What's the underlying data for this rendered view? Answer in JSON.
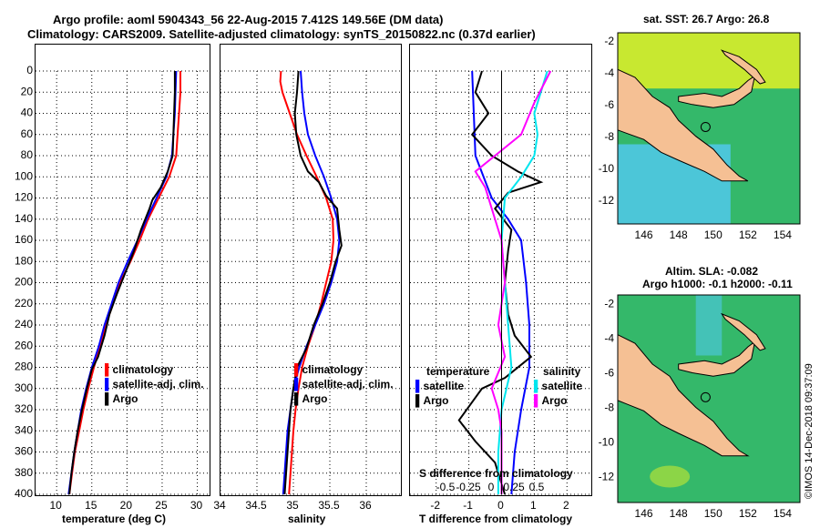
{
  "header": {
    "line1": "Argo profile: aoml 5904343_56 22-Aug-2015 7.412S 149.56E (DM data)",
    "line2": "Climatology: CARS2009. Satellite-adjusted climatology: synTS_20150822.nc (0.37d earlier)"
  },
  "maps": {
    "top_title": "sat. SST: 26.7 Argo: 26.8",
    "bottom_title_1": "Altim. SLA: -0.082",
    "bottom_title_2": "Argo h1000: -0.1 h2000: -0.11",
    "xticks": [
      "146",
      "148",
      "150",
      "152",
      "154"
    ],
    "yticks": [
      "-2",
      "-4",
      "-6",
      "-8",
      "-10",
      "-12"
    ],
    "argo_lon": 149.56,
    "argo_lat": -7.412,
    "colors": {
      "land": "#f5c094",
      "ocean_green": "#34b86a",
      "ocean_cyan": "#4cc6d8",
      "ocean_yellow": "#c8e830"
    }
  },
  "credit": "©IMOS 14-Dec-2018 09:37:09",
  "chart_data": [
    {
      "type": "line",
      "name": "temperature",
      "xlabel": "temperature (deg C)",
      "ylabel": "",
      "xlim": [
        7,
        32
      ],
      "ylim": [
        400,
        0
      ],
      "xticks": [
        10,
        15,
        20,
        25,
        30
      ],
      "yticks": [
        0,
        20,
        40,
        60,
        80,
        100,
        120,
        140,
        160,
        180,
        200,
        220,
        240,
        260,
        280,
        300,
        320,
        340,
        360,
        380,
        400
      ],
      "legend": {
        "position": "lower-right",
        "entries": [
          "climatology",
          "satellite-adj. clim.",
          "Argo"
        ]
      },
      "series": [
        {
          "name": "climatology",
          "color": "#ff0000",
          "points": [
            [
              27.6,
              0
            ],
            [
              27.6,
              20
            ],
            [
              27.4,
              40
            ],
            [
              27.2,
              60
            ],
            [
              27.0,
              80
            ],
            [
              26.0,
              100
            ],
            [
              24.5,
              120
            ],
            [
              23.0,
              140
            ],
            [
              21.8,
              160
            ],
            [
              20.5,
              180
            ],
            [
              19.0,
              200
            ],
            [
              18.0,
              220
            ],
            [
              17.0,
              240
            ],
            [
              16.2,
              260
            ],
            [
              15.3,
              280
            ],
            [
              14.5,
              300
            ],
            [
              13.8,
              320
            ],
            [
              13.2,
              340
            ],
            [
              12.6,
              360
            ],
            [
              12.2,
              380
            ],
            [
              11.8,
              400
            ]
          ]
        },
        {
          "name": "satellite-adj. clim.",
          "color": "#0000ff",
          "points": [
            [
              27.0,
              0
            ],
            [
              26.9,
              20
            ],
            [
              26.8,
              40
            ],
            [
              26.6,
              60
            ],
            [
              26.4,
              80
            ],
            [
              25.6,
              100
            ],
            [
              24.2,
              120
            ],
            [
              22.8,
              140
            ],
            [
              21.5,
              160
            ],
            [
              20.1,
              180
            ],
            [
              18.8,
              200
            ],
            [
              17.8,
              220
            ],
            [
              16.8,
              240
            ],
            [
              16.0,
              260
            ],
            [
              15.0,
              280
            ],
            [
              14.2,
              300
            ],
            [
              13.5,
              320
            ],
            [
              13.0,
              340
            ],
            [
              12.5,
              360
            ],
            [
              12.1,
              380
            ],
            [
              11.7,
              400
            ]
          ]
        },
        {
          "name": "Argo",
          "color": "#000000",
          "points": [
            [
              26.8,
              0
            ],
            [
              26.8,
              20
            ],
            [
              26.7,
              40
            ],
            [
              26.6,
              60
            ],
            [
              26.5,
              80
            ],
            [
              25.8,
              95
            ],
            [
              24.8,
              110
            ],
            [
              23.6,
              122
            ],
            [
              23.2,
              130
            ],
            [
              22.0,
              150
            ],
            [
              21.0,
              170
            ],
            [
              19.8,
              190
            ],
            [
              18.6,
              210
            ],
            [
              17.5,
              230
            ],
            [
              16.8,
              250
            ],
            [
              15.9,
              270
            ],
            [
              15.0,
              282
            ],
            [
              14.3,
              300
            ],
            [
              13.6,
              320
            ],
            [
              13.0,
              340
            ],
            [
              12.5,
              360
            ],
            [
              12.1,
              380
            ],
            [
              11.8,
              400
            ]
          ]
        }
      ]
    },
    {
      "type": "line",
      "name": "salinity",
      "xlabel": "salinity",
      "ylabel": "",
      "xlim": [
        34,
        36.5
      ],
      "ylim": [
        400,
        0
      ],
      "xticks": [
        34,
        34.5,
        35,
        35.5,
        36
      ],
      "xtick_labels": [
        "34",
        "34.5",
        "35",
        "35.5",
        "36"
      ],
      "legend": {
        "position": "lower-right",
        "entries": [
          "climatology",
          "satellite-adj. clim.",
          "Argo"
        ]
      },
      "series": [
        {
          "name": "climatology",
          "color": "#ff0000",
          "points": [
            [
              34.83,
              0
            ],
            [
              34.82,
              10
            ],
            [
              34.85,
              20
            ],
            [
              34.95,
              40
            ],
            [
              35.05,
              60
            ],
            [
              35.18,
              80
            ],
            [
              35.32,
              100
            ],
            [
              35.45,
              120
            ],
            [
              35.54,
              140
            ],
            [
              35.55,
              160
            ],
            [
              35.52,
              180
            ],
            [
              35.45,
              200
            ],
            [
              35.38,
              220
            ],
            [
              35.3,
              240
            ],
            [
              35.2,
              260
            ],
            [
              35.12,
              280
            ],
            [
              35.07,
              300
            ],
            [
              35.03,
              320
            ],
            [
              35.0,
              340
            ],
            [
              34.98,
              360
            ],
            [
              34.96,
              380
            ],
            [
              34.94,
              400
            ]
          ]
        },
        {
          "name": "satellite-adj. clim.",
          "color": "#0000ff",
          "points": [
            [
              35.1,
              0
            ],
            [
              35.12,
              20
            ],
            [
              35.15,
              40
            ],
            [
              35.2,
              60
            ],
            [
              35.3,
              80
            ],
            [
              35.42,
              100
            ],
            [
              35.52,
              120
            ],
            [
              35.6,
              140
            ],
            [
              35.63,
              160
            ],
            [
              35.6,
              180
            ],
            [
              35.52,
              200
            ],
            [
              35.42,
              220
            ],
            [
              35.3,
              240
            ],
            [
              35.18,
              260
            ],
            [
              35.08,
              280
            ],
            [
              35.0,
              300
            ],
            [
              34.96,
              320
            ],
            [
              34.92,
              340
            ],
            [
              34.9,
              360
            ],
            [
              34.88,
              380
            ],
            [
              34.86,
              400
            ]
          ]
        },
        {
          "name": "Argo",
          "color": "#000000",
          "points": [
            [
              35.07,
              0
            ],
            [
              35.05,
              20
            ],
            [
              35.02,
              40
            ],
            [
              35.04,
              60
            ],
            [
              35.1,
              80
            ],
            [
              35.2,
              95
            ],
            [
              35.35,
              105
            ],
            [
              35.45,
              118
            ],
            [
              35.6,
              130
            ],
            [
              35.63,
              150
            ],
            [
              35.66,
              165
            ],
            [
              35.58,
              180
            ],
            [
              35.5,
              200
            ],
            [
              35.4,
              220
            ],
            [
              35.28,
              240
            ],
            [
              35.18,
              262
            ],
            [
              35.05,
              280
            ],
            [
              35.0,
              300
            ],
            [
              34.96,
              320
            ],
            [
              34.94,
              340
            ],
            [
              34.92,
              360
            ],
            [
              34.9,
              380
            ],
            [
              34.88,
              400
            ]
          ]
        }
      ]
    },
    {
      "type": "line",
      "name": "differences",
      "xlabel": "T difference from climatology",
      "xlabel_top": "S difference from climatology",
      "xlim": [
        -2.8,
        2.8
      ],
      "ylim": [
        400,
        0
      ],
      "xticks": [
        -2,
        -1,
        0,
        1,
        2
      ],
      "top_xticks": [
        -0.5,
        -0.25,
        0,
        0.25,
        0.5
      ],
      "top_xtick_labels": [
        "-0.5",
        "-0.25",
        "0",
        "0.25",
        "0.5"
      ],
      "legend_left": {
        "title": "temperature",
        "entries": [
          "satellite",
          "Argo"
        ]
      },
      "legend_right": {
        "title": "salinity",
        "entries": [
          "satellite",
          "Argo"
        ]
      },
      "series": [
        {
          "name": "temperature satellite",
          "color": "#0000ff",
          "points": [
            [
              -0.9,
              0
            ],
            [
              -0.85,
              40
            ],
            [
              -0.8,
              80
            ],
            [
              -0.3,
              120
            ],
            [
              0.2,
              140
            ],
            [
              0.6,
              160
            ],
            [
              0.75,
              200
            ],
            [
              0.85,
              240
            ],
            [
              0.85,
              280
            ],
            [
              0.6,
              320
            ],
            [
              0.4,
              360
            ],
            [
              0.3,
              400
            ]
          ]
        },
        {
          "name": "temperature Argo",
          "color": "#000000",
          "points": [
            [
              -0.6,
              0
            ],
            [
              -0.8,
              20
            ],
            [
              -0.4,
              40
            ],
            [
              -0.9,
              60
            ],
            [
              -0.3,
              80
            ],
            [
              0.5,
              95
            ],
            [
              1.2,
              105
            ],
            [
              0.2,
              115
            ],
            [
              -0.2,
              130
            ],
            [
              0.3,
              150
            ],
            [
              0.2,
              170
            ],
            [
              0.1,
              200
            ],
            [
              0.2,
              230
            ],
            [
              0.4,
              250
            ],
            [
              0.9,
              270
            ],
            [
              0.1,
              290
            ],
            [
              -0.6,
              300
            ],
            [
              -1.3,
              330
            ],
            [
              -0.8,
              350
            ],
            [
              -0.2,
              370
            ],
            [
              0.0,
              390
            ],
            [
              0.1,
              400
            ]
          ]
        },
        {
          "name": "salinity satellite",
          "color": "#00e5ee",
          "points": [
            [
              1.4,
              0
            ],
            [
              1.2,
              20
            ],
            [
              1.0,
              40
            ],
            [
              1.1,
              60
            ],
            [
              1.0,
              80
            ],
            [
              0.6,
              100
            ],
            [
              0.1,
              120
            ],
            [
              0.0,
              160
            ],
            [
              0.1,
              200
            ],
            [
              0.2,
              240
            ],
            [
              0.3,
              280
            ],
            [
              0.0,
              320
            ],
            [
              -0.1,
              360
            ],
            [
              -0.1,
              400
            ]
          ]
        },
        {
          "name": "salinity Argo",
          "color": "#ff00ff",
          "points": [
            [
              1.5,
              0
            ],
            [
              1.0,
              30
            ],
            [
              0.6,
              60
            ],
            [
              -0.2,
              80
            ],
            [
              -0.8,
              95
            ],
            [
              -0.5,
              110
            ],
            [
              -0.3,
              130
            ],
            [
              0.0,
              160
            ],
            [
              0.1,
              200
            ],
            [
              -0.1,
              240
            ],
            [
              0.1,
              270
            ],
            [
              -0.3,
              300
            ],
            [
              -0.1,
              320
            ],
            [
              0.0,
              340
            ],
            [
              0.0,
              380
            ],
            [
              0.0,
              400
            ]
          ]
        }
      ]
    }
  ]
}
